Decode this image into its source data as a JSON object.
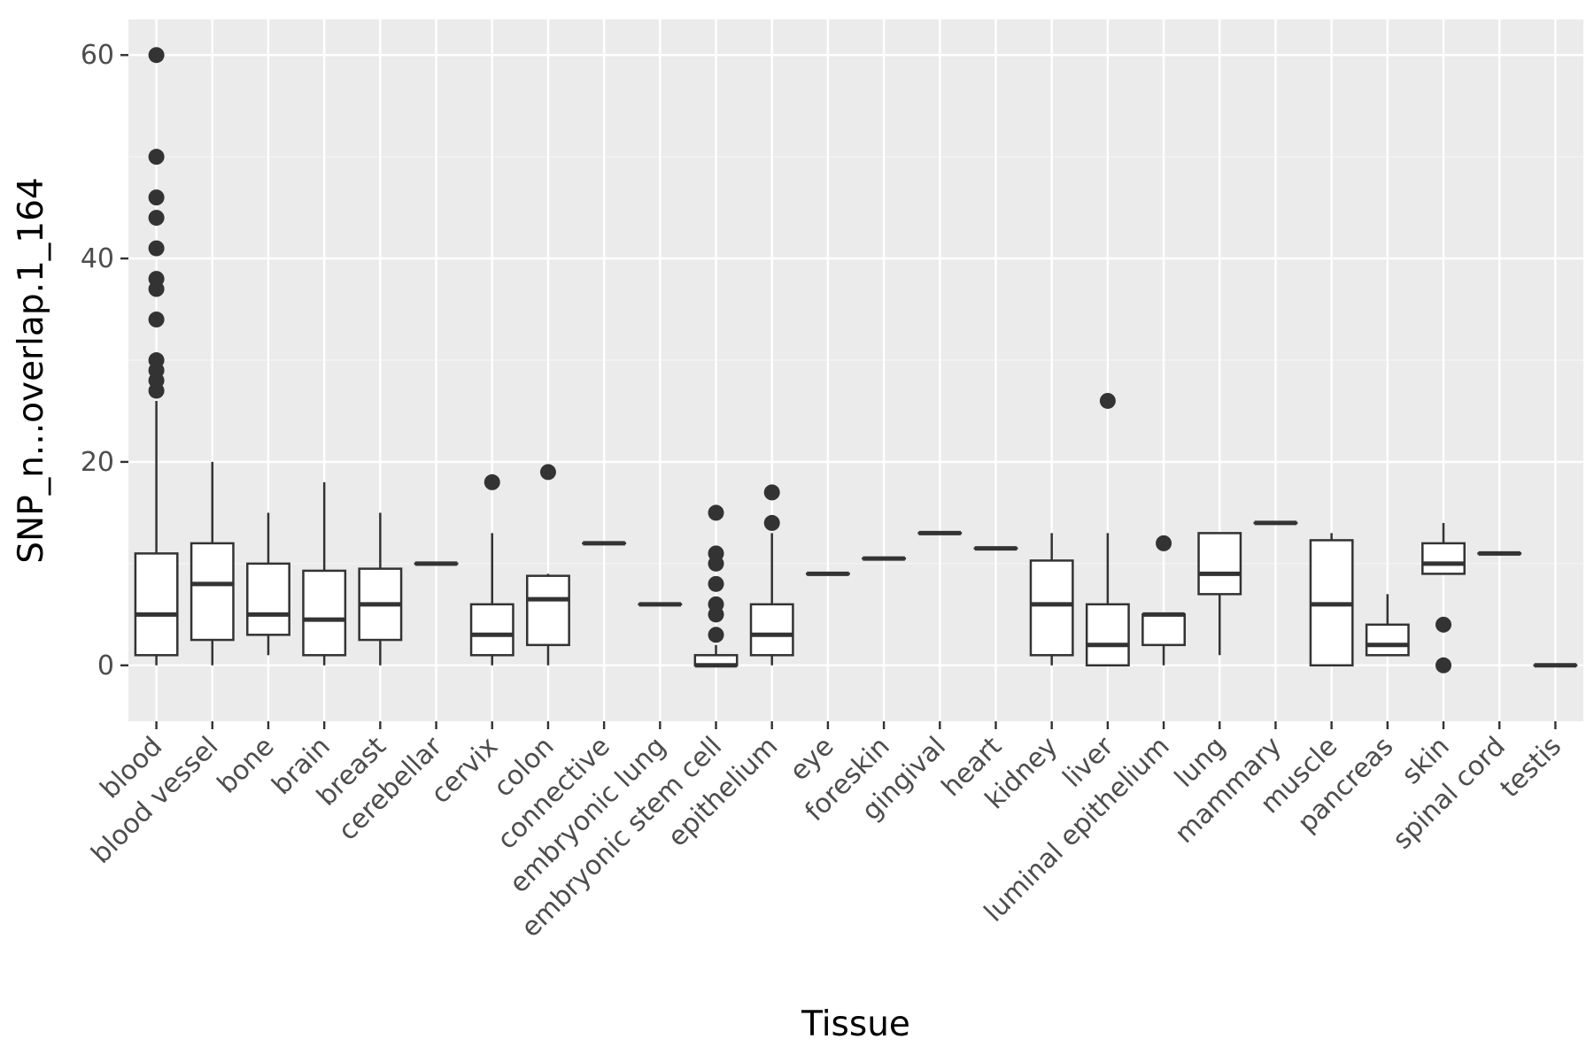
{
  "chart_data": {
    "type": "box",
    "xlabel": "Tissue",
    "ylabel": "SNP_n...overlap.1_164",
    "ylim": [
      -5.5,
      63.5
    ],
    "y_ticks": [
      0,
      20,
      40,
      60
    ],
    "grid": true,
    "categories": [
      "blood",
      "blood vessel",
      "bone",
      "brain",
      "breast",
      "cerebellar",
      "cervix",
      "colon",
      "connective",
      "embryonic lung",
      "embryonic stem cell",
      "epithelium",
      "eye",
      "foreskin",
      "gingival",
      "heart",
      "kidney",
      "liver",
      "luminal epithelium",
      "lung",
      "mammary",
      "muscle",
      "pancreas",
      "skin",
      "spinal cord",
      "testis"
    ],
    "boxes": [
      {
        "q1": 1,
        "median": 5,
        "q3": 11,
        "whisker_low": 0,
        "whisker_high": 26,
        "outliers": [
          27,
          28,
          29,
          30,
          34,
          37,
          38,
          41,
          44,
          46,
          50,
          60
        ]
      },
      {
        "q1": 2.5,
        "median": 8,
        "q3": 12,
        "whisker_low": 0,
        "whisker_high": 20,
        "outliers": []
      },
      {
        "q1": 3,
        "median": 5,
        "q3": 10,
        "whisker_low": 1,
        "whisker_high": 15,
        "outliers": []
      },
      {
        "q1": 1,
        "median": 4.5,
        "q3": 9.3,
        "whisker_low": 0,
        "whisker_high": 18,
        "outliers": []
      },
      {
        "q1": 2.5,
        "median": 6,
        "q3": 9.5,
        "whisker_low": 0,
        "whisker_high": 15,
        "outliers": []
      },
      {
        "q1": 10,
        "median": 10,
        "q3": 10,
        "whisker_low": 10,
        "whisker_high": 10,
        "outliers": []
      },
      {
        "q1": 1,
        "median": 3,
        "q3": 6,
        "whisker_low": 0,
        "whisker_high": 13,
        "outliers": [
          18
        ]
      },
      {
        "q1": 2,
        "median": 6.5,
        "q3": 8.8,
        "whisker_low": 0,
        "whisker_high": 9,
        "outliers": [
          19
        ]
      },
      {
        "q1": 12,
        "median": 12,
        "q3": 12,
        "whisker_low": 12,
        "whisker_high": 12,
        "outliers": []
      },
      {
        "q1": 6,
        "median": 6,
        "q3": 6,
        "whisker_low": 6,
        "whisker_high": 6,
        "outliers": []
      },
      {
        "q1": 0,
        "median": 0,
        "q3": 1,
        "whisker_low": 0,
        "whisker_high": 2,
        "outliers": [
          3,
          5,
          6,
          8,
          10,
          11,
          15
        ]
      },
      {
        "q1": 1,
        "median": 3,
        "q3": 6,
        "whisker_low": 0,
        "whisker_high": 13,
        "outliers": [
          14,
          17
        ]
      },
      {
        "q1": 9,
        "median": 9,
        "q3": 9,
        "whisker_low": 9,
        "whisker_high": 9,
        "outliers": []
      },
      {
        "q1": 10.5,
        "median": 10.5,
        "q3": 10.5,
        "whisker_low": 10.5,
        "whisker_high": 10.5,
        "outliers": []
      },
      {
        "q1": 13,
        "median": 13,
        "q3": 13,
        "whisker_low": 13,
        "whisker_high": 13,
        "outliers": []
      },
      {
        "q1": 11.5,
        "median": 11.5,
        "q3": 11.5,
        "whisker_low": 11.5,
        "whisker_high": 11.5,
        "outliers": []
      },
      {
        "q1": 1,
        "median": 6,
        "q3": 10.3,
        "whisker_low": 0,
        "whisker_high": 13,
        "outliers": []
      },
      {
        "q1": 0,
        "median": 2,
        "q3": 6,
        "whisker_low": 0,
        "whisker_high": 13,
        "outliers": [
          26
        ]
      },
      {
        "q1": 2,
        "median": 5,
        "q3": 5,
        "whisker_low": 0,
        "whisker_high": 5,
        "outliers": [
          12
        ]
      },
      {
        "q1": 7,
        "median": 9,
        "q3": 13,
        "whisker_low": 1,
        "whisker_high": 13,
        "outliers": []
      },
      {
        "q1": 14,
        "median": 14,
        "q3": 14,
        "whisker_low": 14,
        "whisker_high": 14,
        "outliers": []
      },
      {
        "q1": 0,
        "median": 6,
        "q3": 12.3,
        "whisker_low": 0,
        "whisker_high": 13,
        "outliers": []
      },
      {
        "q1": 1,
        "median": 2,
        "q3": 4,
        "whisker_low": 1,
        "whisker_high": 7,
        "outliers": []
      },
      {
        "q1": 9,
        "median": 10,
        "q3": 12,
        "whisker_low": 9,
        "whisker_high": 14,
        "outliers": [
          0,
          4
        ]
      },
      {
        "q1": 11,
        "median": 11,
        "q3": 11,
        "whisker_low": 11,
        "whisker_high": 11,
        "outliers": []
      },
      {
        "q1": 0,
        "median": 0,
        "q3": 0,
        "whisker_low": 0,
        "whisker_high": 0,
        "outliers": []
      }
    ]
  },
  "colors": {
    "panel_background": "#ebebeb",
    "grid_major": "#ffffff",
    "grid_minor": "#f5f5f5",
    "box_stroke": "#333333",
    "box_fill": "#ffffff",
    "outlier_fill": "#333333",
    "tick_text": "#4d4d4d",
    "title_text": "#000000"
  }
}
